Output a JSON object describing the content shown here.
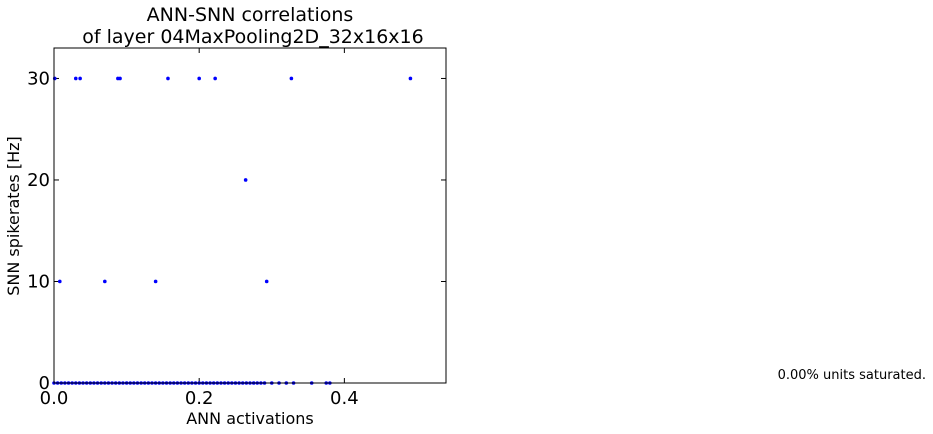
{
  "chart_data": {
    "type": "scatter",
    "title_line1": "ANN-SNN correlations",
    "title_line2": "of layer 04MaxPooling2D_32x16x16",
    "xlabel": "ANN activations",
    "ylabel": "SNN spikerates [Hz]",
    "xlim": [
      0.0,
      0.54
    ],
    "ylim": [
      0,
      33
    ],
    "xticks": [
      {
        "value": 0.0,
        "label": "0.0"
      },
      {
        "value": 0.2,
        "label": "0.2"
      },
      {
        "value": 0.4,
        "label": "0.4"
      }
    ],
    "yticks": [
      {
        "value": 0,
        "label": "0"
      },
      {
        "value": 10,
        "label": "10"
      },
      {
        "value": 20,
        "label": "20"
      },
      {
        "value": 30,
        "label": "30"
      }
    ],
    "grid": false,
    "point_color": "#0000ff",
    "points": [
      [
        0.001,
        30
      ],
      [
        0.03,
        30
      ],
      [
        0.036,
        30
      ],
      [
        0.088,
        30
      ],
      [
        0.091,
        30
      ],
      [
        0.157,
        30
      ],
      [
        0.2,
        30
      ],
      [
        0.222,
        30
      ],
      [
        0.327,
        30
      ],
      [
        0.491,
        30
      ],
      [
        0.264,
        20
      ],
      [
        0.008,
        10
      ],
      [
        0.07,
        10
      ],
      [
        0.14,
        10
      ],
      [
        0.293,
        10
      ],
      [
        0.0,
        0
      ],
      [
        0.005,
        0
      ],
      [
        0.01,
        0
      ],
      [
        0.015,
        0
      ],
      [
        0.02,
        0
      ],
      [
        0.025,
        0
      ],
      [
        0.03,
        0
      ],
      [
        0.035,
        0
      ],
      [
        0.04,
        0
      ],
      [
        0.045,
        0
      ],
      [
        0.05,
        0
      ],
      [
        0.055,
        0
      ],
      [
        0.06,
        0
      ],
      [
        0.065,
        0
      ],
      [
        0.07,
        0
      ],
      [
        0.075,
        0
      ],
      [
        0.08,
        0
      ],
      [
        0.085,
        0
      ],
      [
        0.09,
        0
      ],
      [
        0.095,
        0
      ],
      [
        0.1,
        0
      ],
      [
        0.105,
        0
      ],
      [
        0.11,
        0
      ],
      [
        0.115,
        0
      ],
      [
        0.12,
        0
      ],
      [
        0.125,
        0
      ],
      [
        0.13,
        0
      ],
      [
        0.135,
        0
      ],
      [
        0.14,
        0
      ],
      [
        0.145,
        0
      ],
      [
        0.15,
        0
      ],
      [
        0.155,
        0
      ],
      [
        0.16,
        0
      ],
      [
        0.165,
        0
      ],
      [
        0.17,
        0
      ],
      [
        0.175,
        0
      ],
      [
        0.18,
        0
      ],
      [
        0.185,
        0
      ],
      [
        0.19,
        0
      ],
      [
        0.195,
        0
      ],
      [
        0.2,
        0
      ],
      [
        0.205,
        0
      ],
      [
        0.21,
        0
      ],
      [
        0.215,
        0
      ],
      [
        0.22,
        0
      ],
      [
        0.225,
        0
      ],
      [
        0.23,
        0
      ],
      [
        0.235,
        0
      ],
      [
        0.24,
        0
      ],
      [
        0.245,
        0
      ],
      [
        0.25,
        0
      ],
      [
        0.255,
        0
      ],
      [
        0.26,
        0
      ],
      [
        0.265,
        0
      ],
      [
        0.27,
        0
      ],
      [
        0.275,
        0
      ],
      [
        0.28,
        0
      ],
      [
        0.285,
        0
      ],
      [
        0.29,
        0
      ],
      [
        0.3,
        0
      ],
      [
        0.31,
        0
      ],
      [
        0.32,
        0
      ],
      [
        0.33,
        0
      ],
      [
        0.355,
        0
      ],
      [
        0.375,
        0
      ],
      [
        0.38,
        0
      ]
    ]
  },
  "annotation": {
    "saturation_text": "0.00% units saturated."
  }
}
